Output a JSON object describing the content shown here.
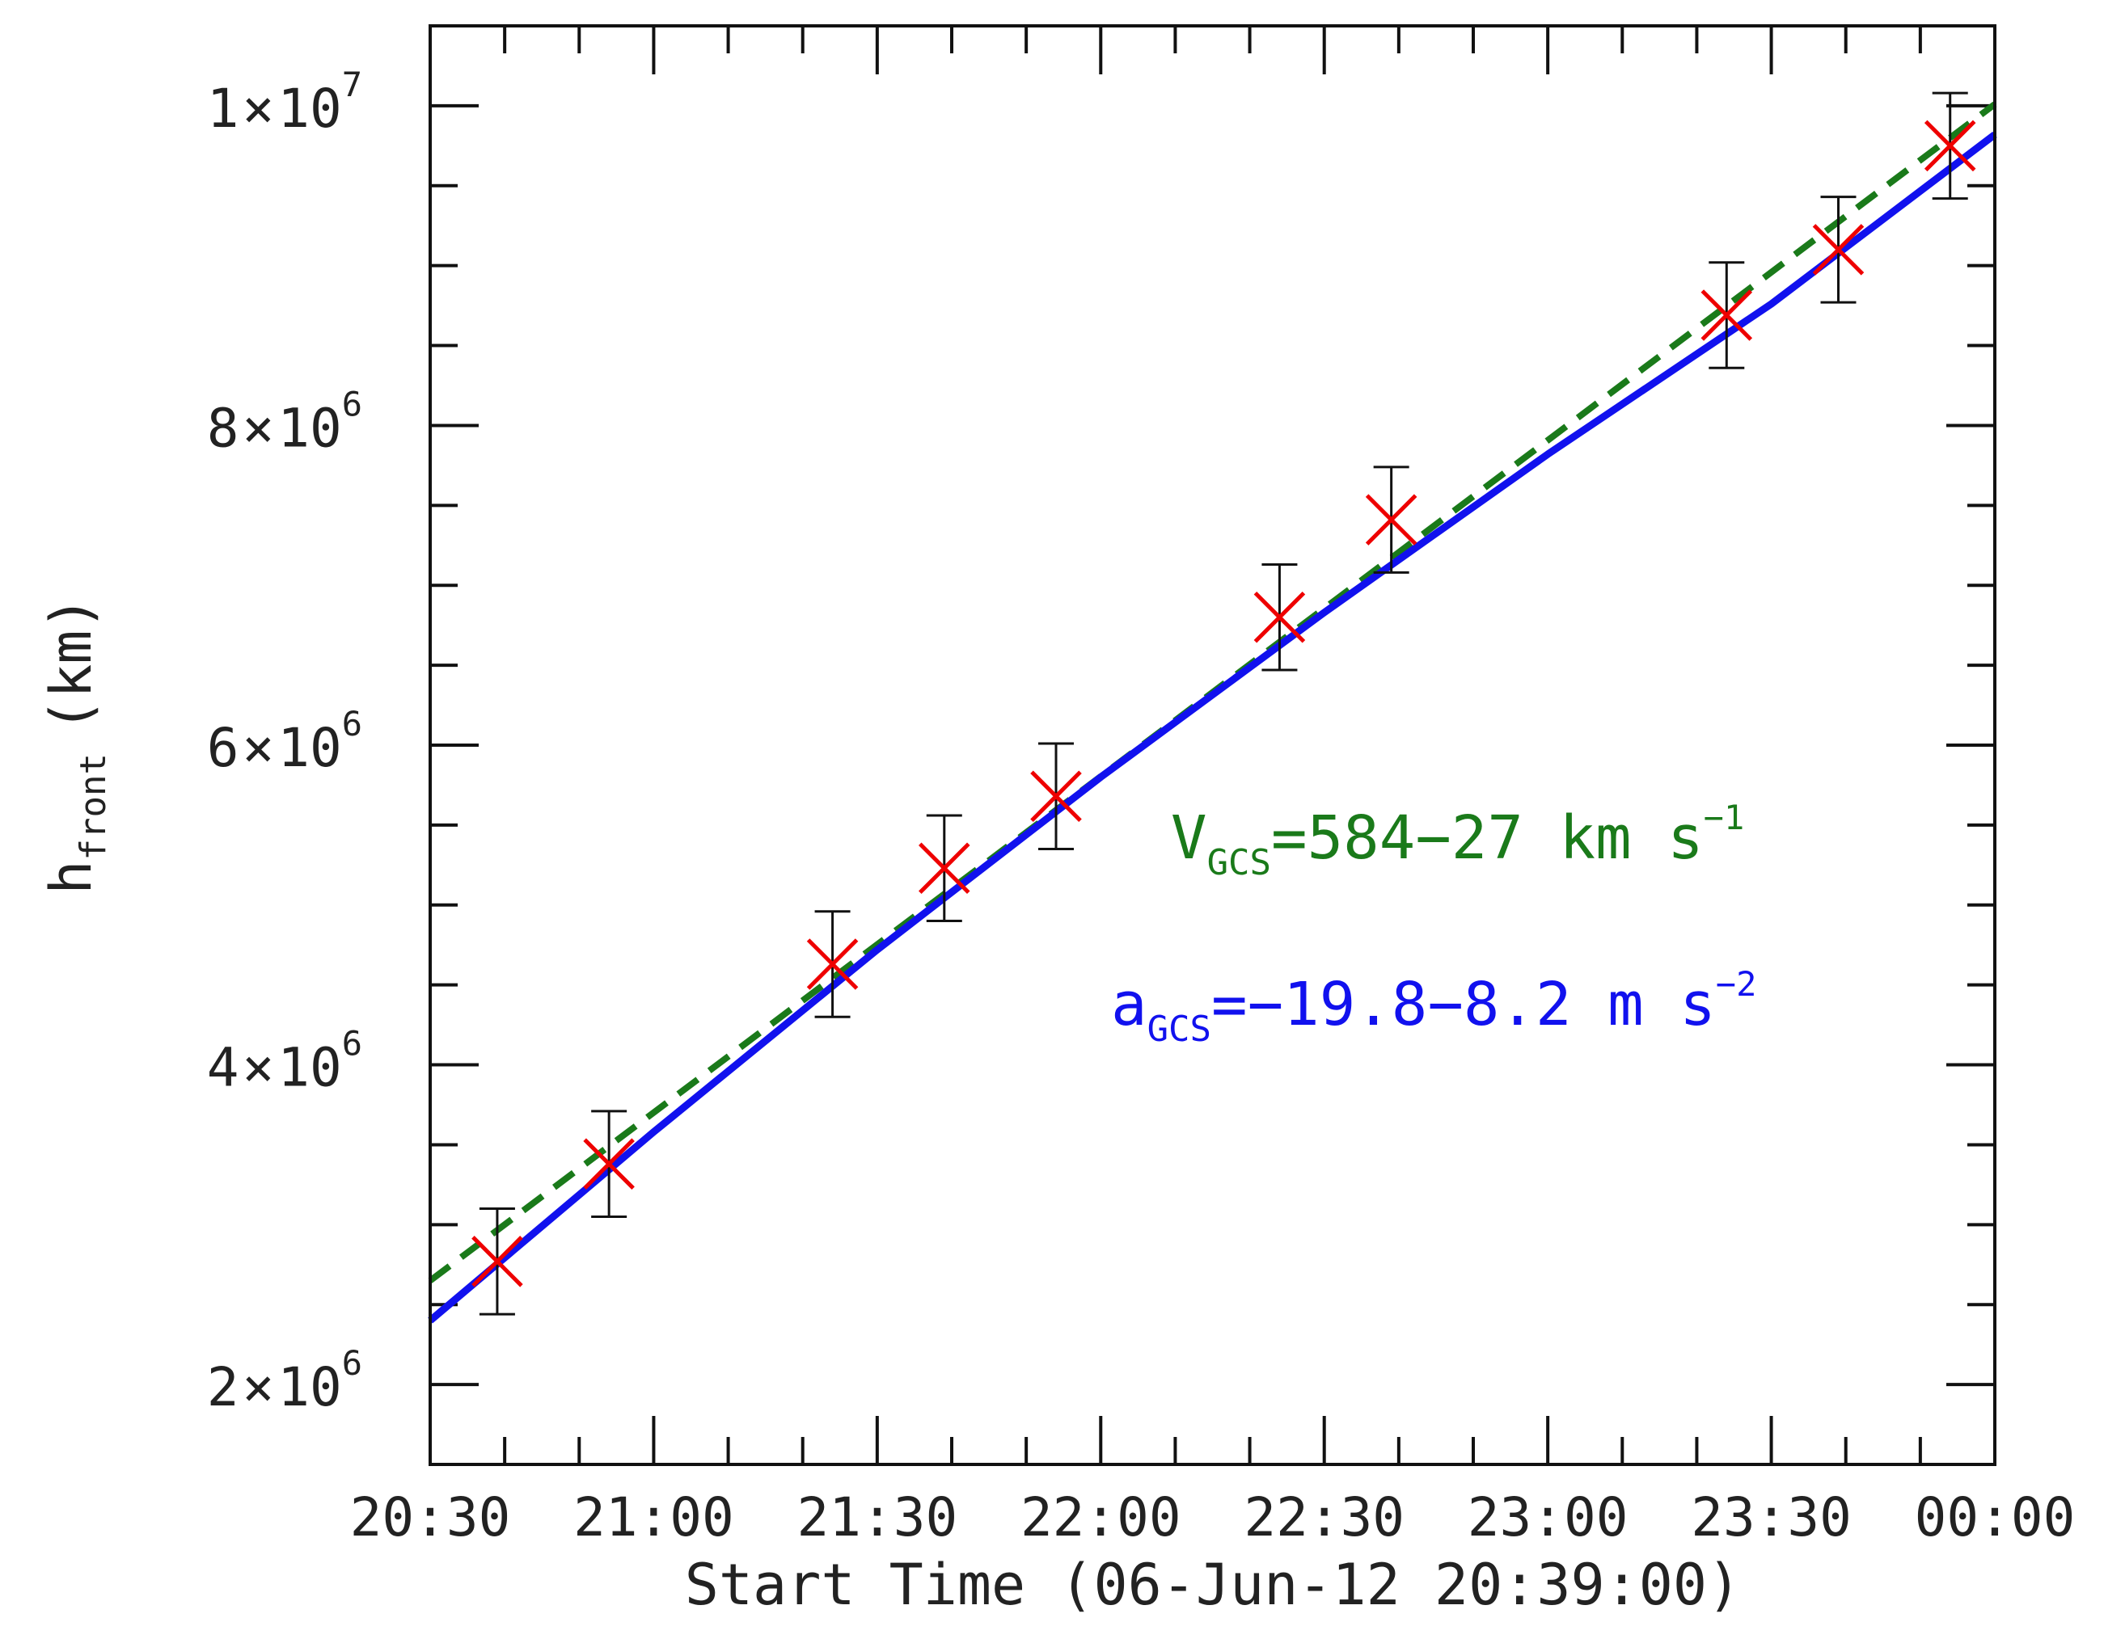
{
  "chart_data": {
    "type": "scatter",
    "title": "",
    "xlabel": "Start Time (06-Jun-12 20:39:00)",
    "ylabel": {
      "base": "h",
      "sub": "front",
      "unit": "(km)"
    },
    "x_unit": "minutes after 20:30",
    "xlim": [
      0,
      210
    ],
    "ylim": [
      1500000,
      10500000
    ],
    "x_ticks": [
      {
        "value": 0,
        "label": "20:30"
      },
      {
        "value": 30,
        "label": "21:00"
      },
      {
        "value": 60,
        "label": "21:30"
      },
      {
        "value": 90,
        "label": "22:00"
      },
      {
        "value": 120,
        "label": "22:30"
      },
      {
        "value": 150,
        "label": "23:00"
      },
      {
        "value": 180,
        "label": "23:30"
      },
      {
        "value": 210,
        "label": "00:00"
      }
    ],
    "y_ticks": [
      {
        "value": 2000000,
        "mantissa": "2",
        "times": "×",
        "base": "10",
        "exp": "6"
      },
      {
        "value": 4000000,
        "mantissa": "4",
        "times": "×",
        "base": "10",
        "exp": "6"
      },
      {
        "value": 6000000,
        "mantissa": "6",
        "times": "×",
        "base": "10",
        "exp": "6"
      },
      {
        "value": 8000000,
        "mantissa": "8",
        "times": "×",
        "base": "10",
        "exp": "6"
      },
      {
        "value": 10000000,
        "mantissa": "1",
        "times": "×",
        "base": "10",
        "exp": "7"
      }
    ],
    "series": [
      {
        "name": "GCS measurements",
        "kind": "points_with_errorbars",
        "marker": "x",
        "marker_color": "#ee0000",
        "errorbar_color": "#111111",
        "points": [
          {
            "x": 9,
            "y": 2770000,
            "err": 330000
          },
          {
            "x": 24,
            "y": 3380000,
            "err": 330000
          },
          {
            "x": 54,
            "y": 4630000,
            "err": 330000
          },
          {
            "x": 69,
            "y": 5230000,
            "err": 330000
          },
          {
            "x": 84,
            "y": 5680000,
            "err": 330000
          },
          {
            "x": 114,
            "y": 6800000,
            "err": 330000
          },
          {
            "x": 129,
            "y": 7410000,
            "err": 330000
          },
          {
            "x": 174,
            "y": 8690000,
            "err": 330000
          },
          {
            "x": 189,
            "y": 9100000,
            "err": 330000
          },
          {
            "x": 204,
            "y": 9750000,
            "err": 330000
          }
        ]
      },
      {
        "name": "linear fit",
        "kind": "line",
        "style": "dashed",
        "color": "#1a7a1a",
        "x": [
          0,
          210
        ],
        "y": [
          2650000,
          10010000
        ]
      },
      {
        "name": "quadratic fit",
        "kind": "line",
        "style": "solid",
        "color": "#1111ee",
        "x": [
          0,
          30,
          60,
          90,
          120,
          150,
          180,
          210
        ],
        "y": [
          2400000,
          3580000,
          4720000,
          5800000,
          6830000,
          7820000,
          8760000,
          9820000
        ]
      }
    ],
    "annotations": [
      {
        "id": "velocity",
        "color": "#1a7a1a",
        "main": "V",
        "sub": "GCS",
        "text": "=584−27 km s",
        "sup": "−1"
      },
      {
        "id": "acceleration",
        "color": "#1111ee",
        "main": "a",
        "sub": "GCS",
        "text": "=−19.8−8.2 m s",
        "sup": "−2"
      }
    ]
  }
}
